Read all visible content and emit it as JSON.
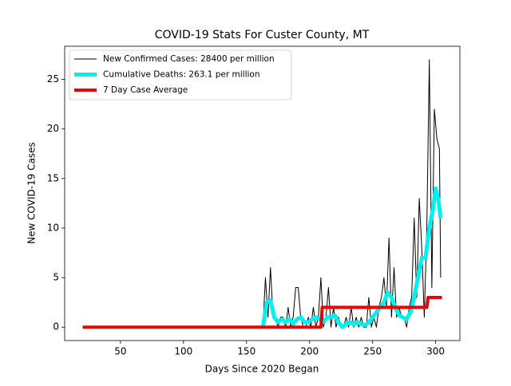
{
  "chart_data": {
    "type": "line",
    "title": "COVID-19 Stats For Custer County, MT",
    "xlabel": "Days Since 2020 Began",
    "ylabel": "New COVID-19 Cases",
    "xlim": [
      5.75,
      319.25
    ],
    "ylim": [
      -1.35,
      28.35
    ],
    "xticks": [
      50,
      100,
      150,
      200,
      250,
      300
    ],
    "yticks": [
      0,
      5,
      10,
      15,
      20,
      25
    ],
    "legend": "upper left",
    "series": [
      {
        "name": "New Confirmed Cases: 28400 per million",
        "color": "#000000",
        "x": [
          163,
          165,
          167,
          169,
          171,
          173,
          175,
          177,
          179,
          181,
          183,
          185,
          187,
          189,
          191,
          193,
          195,
          197,
          199,
          201,
          203,
          205,
          207,
          209,
          211,
          213,
          215,
          217,
          219,
          221,
          223,
          225,
          227,
          229,
          231,
          233,
          235,
          237,
          239,
          241,
          243,
          245,
          247,
          249,
          251,
          253,
          255,
          257,
          259,
          261,
          263,
          265,
          267,
          269,
          271,
          273,
          275,
          277,
          279,
          281,
          283,
          285,
          287,
          289,
          291,
          293,
          295,
          297,
          299,
          301,
          303,
          304
        ],
        "values": [
          0,
          5,
          1,
          6,
          1,
          1,
          0,
          1,
          1,
          0,
          2,
          0,
          1,
          4,
          4,
          1,
          0,
          0,
          1,
          0,
          2,
          0,
          1,
          5,
          0,
          1,
          4,
          0,
          2,
          0,
          1,
          0,
          0,
          1,
          0,
          2,
          0,
          1,
          0,
          1,
          0,
          0,
          3,
          0,
          1,
          0,
          2,
          3,
          5,
          2,
          9,
          1,
          6,
          1,
          2,
          1,
          1,
          0,
          2,
          3,
          11,
          3,
          13,
          8,
          1,
          10,
          27,
          4,
          22,
          19,
          18,
          5
        ]
      },
      {
        "name": "Cumulative Deaths: 263.1 per million",
        "color": "#00f0f0",
        "x": [
          163,
          166,
          169,
          172,
          175,
          178,
          181,
          184,
          187,
          190,
          193,
          196,
          199,
          202,
          205,
          208,
          211,
          214,
          217,
          220,
          223,
          226,
          229,
          232,
          235,
          238,
          241,
          244,
          247,
          250,
          253,
          256,
          259,
          262,
          265,
          268,
          271,
          274,
          277,
          280,
          283,
          286,
          289,
          292,
          295,
          298,
          300,
          302,
          304
        ],
        "values": [
          0,
          2.5,
          2.7,
          1,
          0.5,
          0.8,
          0.5,
          0.8,
          0.3,
          0.8,
          1,
          0.5,
          0.5,
          0.8,
          1,
          0.8,
          0.5,
          1,
          1,
          1.2,
          0.5,
          0,
          0.3,
          0.5,
          0.3,
          0.5,
          0.3,
          0.2,
          0.5,
          1,
          1.5,
          2,
          2.5,
          3.5,
          3,
          2,
          1.2,
          1,
          0.8,
          1.5,
          3,
          5,
          7,
          7,
          10,
          12,
          14,
          13,
          11
        ]
      },
      {
        "name": "7 Day Case Average",
        "color": "#ee0000",
        "x": [
          20,
          209,
          210,
          293,
          294,
          305
        ],
        "values": [
          0,
          0,
          2,
          2,
          3,
          3
        ]
      }
    ]
  }
}
